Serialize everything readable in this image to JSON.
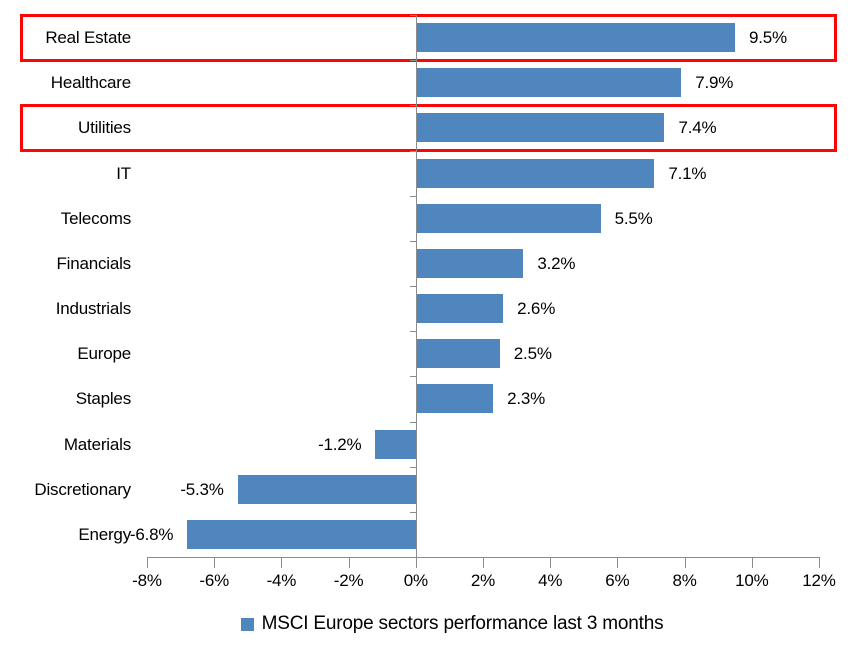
{
  "chart_data": {
    "type": "bar",
    "orientation": "horizontal",
    "categories": [
      "Real Estate",
      "Healthcare",
      "Utilities",
      "IT",
      "Telecoms",
      "Financials",
      "Industrials",
      "Europe",
      "Staples",
      "Materials",
      "Discretionary",
      "Energy"
    ],
    "values": [
      9.5,
      7.9,
      7.4,
      7.1,
      5.5,
      3.2,
      2.6,
      2.5,
      2.3,
      -1.2,
      -5.3,
      -6.8
    ],
    "value_labels": [
      "9.5%",
      "7.9%",
      "7.4%",
      "7.1%",
      "5.5%",
      "3.2%",
      "2.6%",
      "2.5%",
      "2.3%",
      "-1.2%",
      "-5.3%",
      "-6.8%"
    ],
    "highlighted_categories": [
      "Real Estate",
      "Utilities"
    ],
    "xlim": [
      -8,
      12
    ],
    "x_ticks": [
      "-8%",
      "-6%",
      "-4%",
      "-2%",
      "0%",
      "2%",
      "4%",
      "6%",
      "8%",
      "10%",
      "12%"
    ],
    "x_tick_values": [
      -8,
      -6,
      -4,
      -2,
      0,
      2,
      4,
      6,
      8,
      10,
      12
    ],
    "grid": false,
    "legend": {
      "position": "bottom",
      "entries": [
        "MSCI Europe sectors performance last 3 months"
      ]
    },
    "colors": {
      "bar": "#4E86BD",
      "highlight_box": "#FB0505",
      "axis": "#8C8C8C",
      "text": "#000000"
    }
  }
}
